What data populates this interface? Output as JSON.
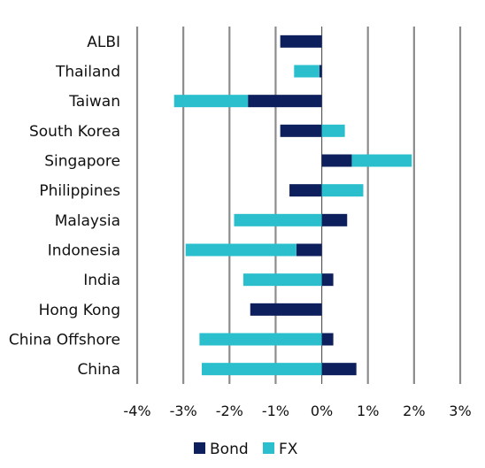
{
  "chart_data": {
    "type": "bar",
    "orientation": "horizontal",
    "stacked": true,
    "title": "",
    "xlabel": "",
    "ylabel": "",
    "categories": [
      "ALBI",
      "Thailand",
      "Taiwan",
      "South Korea",
      "Singapore",
      "Philippines",
      "Malaysia",
      "Indonesia",
      "India",
      "Hong Kong",
      "China Offshore",
      "China"
    ],
    "series": [
      {
        "name": "Bond",
        "color": "#0d1f5c",
        "values": [
          -0.9,
          -0.05,
          -1.6,
          -0.9,
          0.65,
          -0.7,
          0.55,
          -0.55,
          0.25,
          -1.55,
          0.25,
          0.75
        ]
      },
      {
        "name": "FX",
        "color": "#2bbfcd",
        "values": [
          0.0,
          -0.55,
          -1.6,
          0.5,
          1.3,
          0.9,
          -1.9,
          -2.4,
          -1.7,
          0.0,
          -2.65,
          -2.6
        ]
      }
    ],
    "xlim": [
      -4,
      3
    ],
    "xticks": [
      -4,
      -3,
      -2,
      -1,
      0,
      1,
      2,
      3
    ],
    "xtick_labels": [
      "-4%",
      "-3%",
      "-2%",
      "-1%",
      "0%",
      "1%",
      "2%",
      "3%"
    ],
    "grid": "vertical",
    "legend": "bottom"
  }
}
